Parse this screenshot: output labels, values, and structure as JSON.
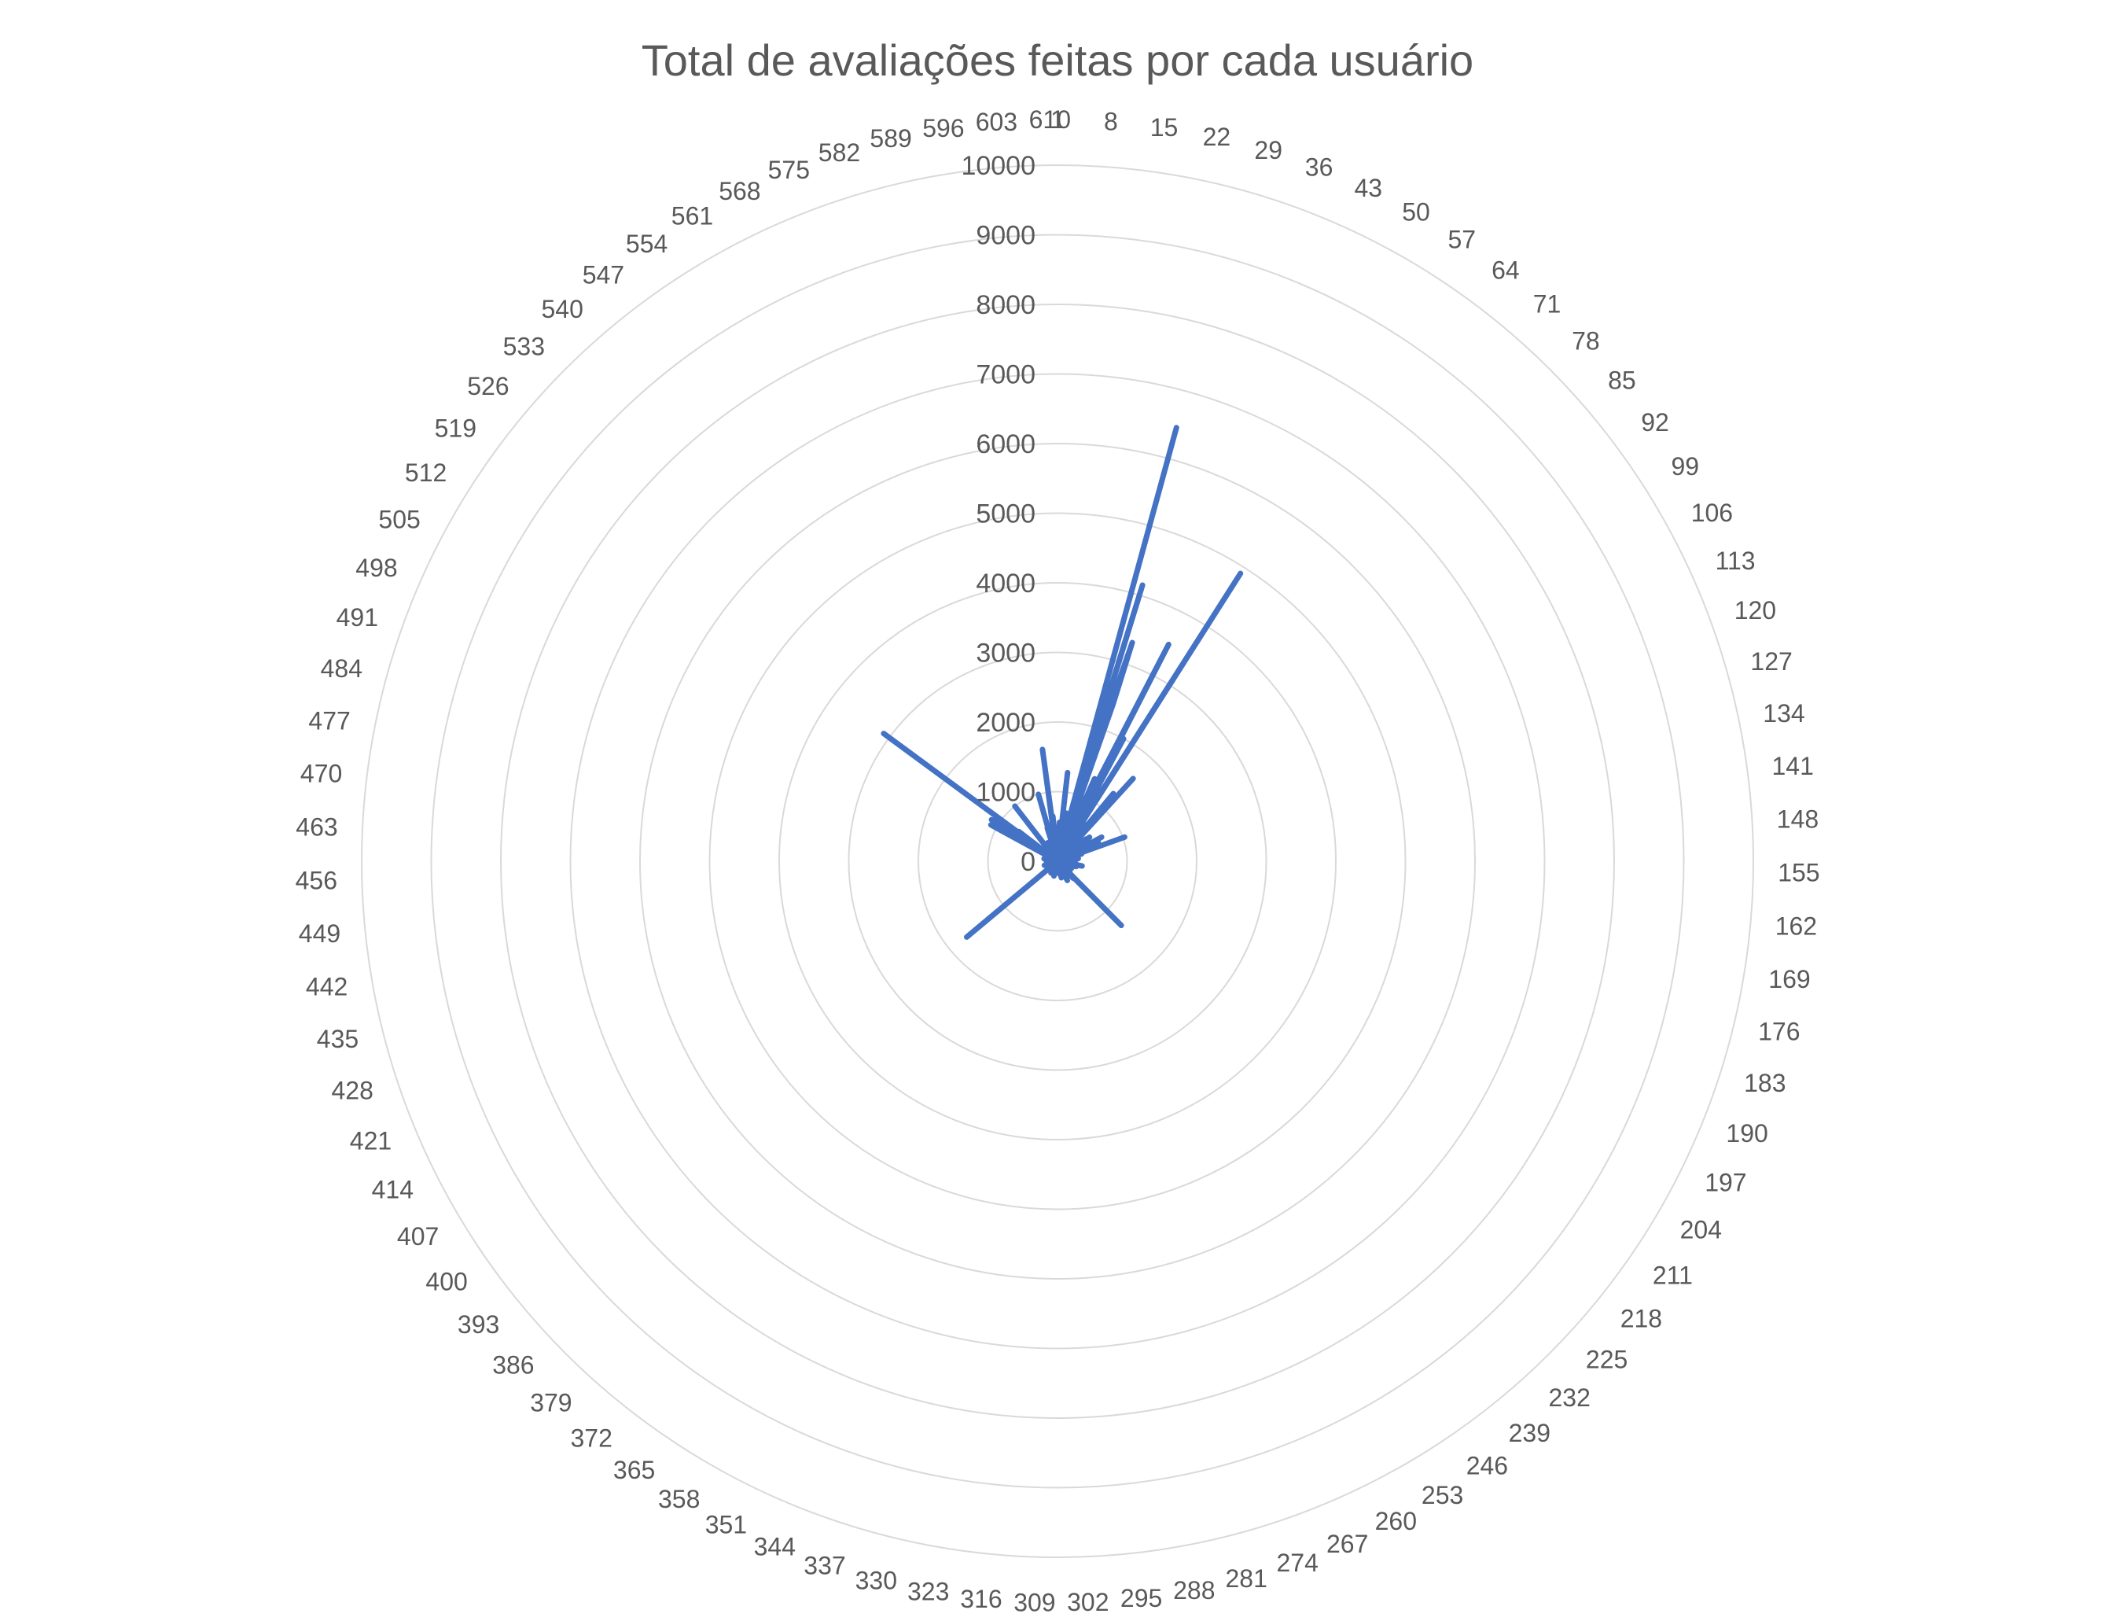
{
  "chart_data": {
    "type": "radar",
    "title": "Total de avaliações feitas por cada usuário",
    "categories_start": 1,
    "categories_end": 610,
    "category_label_step": 7,
    "radial_ticks": [
      0,
      1000,
      2000,
      3000,
      4000,
      5000,
      6000,
      7000,
      8000,
      9000,
      10000
    ],
    "rmax": 10000,
    "series": [
      {
        "color": "#4472c4",
        "values": [
          232,
          29,
          39,
          216,
          44,
          314,
          152,
          47,
          46,
          140,
          64,
          32,
          31,
          48,
          135,
          98,
          105,
          502,
          703,
          238,
          443,
          130,
          121,
          140,
          26,
          34,
          135,
          570,
          84,
          34,
          50,
          110,
          156,
          86,
          24,
          68,
          29,
          21,
          98,
          223,
          217,
          87,
          114,
          48,
          399,
          44,
          140,
          36,
          21,
          310,
          359,
          130,
          20,
          42,
          25,
          168,
          476,
          167,
          28,
          28,
          81,
          366,
          271,
          517,
          34,
          345,
          22,
          1260,
          20,
          39,
          64,
          40,
          1610,
          160,
          80,
          84,
          39,
          89,
          48,
          180,
          22,
          147,
          109,
          442,
          58,
          121,
          63,
          43,
          518,
          58,
          575,
          22,
          74,
          68,
          171,
          78,
          36,
          57,
          136,
          148,
          250,
          101,
          377,
          284,
          722,
          70,
          35,
          76,
          44,
          114,
          646,
          102,
          125,
          40,
          54,
          103,
          118,
          74,
          65,
          1026,
          27,
          310,
          118,
          250,
          360,
          29,
          85,
          40,
          48,
          39,
          52,
          211,
          48,
          20,
          182,
          94,
          143,
          86,
          190,
          81,
          301,
          134,
          32,
          145,
          111,
          60,
          35,
          38,
          34,
          24,
          36,
          34,
          95,
          49,
          192,
          69,
          93,
          35,
          48,
          63,
          133,
          52,
          70,
          95,
          47,
          43,
          270,
          114,
          143,
          149,
          78,
          360,
          59,
          148,
          91,
          197,
          34,
          161,
          23,
          280,
          79,
          123,
          31,
          24,
          38,
          23,
          139,
          37,
          53,
          95,
          140,
          131,
          200,
          48,
          76,
          58,
          215,
          86,
          225,
          170,
          48,
          34,
          46,
          160,
          130,
          65,
          86,
          38,
          53,
          56,
          60,
          72,
          94,
          74,
          189,
          210,
          32,
          66,
          75,
          50,
          46,
          60,
          235,
          50,
          60,
          240,
          59,
          189,
          188,
          1300,
          160,
          85,
          189,
          330,
          48,
          89,
          40,
          20,
          39,
          86,
          153,
          47,
          50,
          183,
          107,
          62,
          71,
          108,
          57,
          93,
          106,
          57,
          130,
          73,
          109,
          35,
          139,
          90,
          50,
          310,
          104,
          102,
          66,
          80,
          53,
          114,
          47,
          138,
          33,
          79,
          121,
          52,
          115,
          50,
          34,
          39,
          96,
          31,
          29,
          70,
          42,
          38,
          102,
          244,
          101,
          199,
          47,
          44,
          36,
          110,
          63,
          51,
          94,
          113,
          90,
          76,
          31,
          62,
          69,
          120,
          98,
          160,
          62,
          170,
          20,
          56,
          145,
          51,
          38,
          129,
          34,
          86,
          36,
          50,
          89,
          59,
          93,
          84,
          63,
          32,
          137,
          109,
          176,
          25,
          33,
          38,
          72,
          62,
          219,
          26,
          85,
          141,
          38,
          75,
          103,
          197,
          68,
          21,
          33,
          78,
          113,
          99,
          31,
          40,
          44,
          51,
          100,
          73,
          76,
          95,
          175,
          104,
          48,
          32,
          193,
          160,
          57,
          48,
          28,
          56,
          85,
          22,
          114,
          45,
          59,
          101,
          68,
          120,
          33,
          59,
          136,
          45,
          64,
          58,
          102,
          36,
          123,
          92,
          65,
          88,
          81,
          99,
          99,
          73,
          131,
          132,
          185,
          51,
          25,
          98,
          1700,
          40,
          20,
          36,
          150,
          52,
          53,
          43,
          56,
          21,
          54,
          100,
          24,
          36,
          26,
          86,
          48,
          75,
          70,
          85,
          41,
          66,
          46,
          27,
          48,
          35,
          88,
          64,
          22,
          39,
          87,
          80,
          31,
          40,
          164,
          155,
          29,
          26,
          196,
          60,
          90,
          86,
          21,
          54,
          31,
          26,
          35,
          24,
          70,
          140,
          37,
          49,
          43,
          89,
          40,
          30,
          97,
          53,
          29,
          29,
          41,
          33,
          48,
          78,
          23,
          53,
          137,
          35,
          76,
          104,
          144,
          53,
          164,
          66,
          31,
          54,
          42,
          95,
          62,
          71,
          50,
          73,
          102,
          65,
          47,
          137,
          197,
          100,
          45,
          120,
          20,
          41,
          54,
          25,
          61,
          94,
          52,
          37,
          22,
          110,
          52,
          130,
          41,
          89,
          96,
          102,
          68,
          190,
          111,
          114,
          26,
          78,
          25,
          60,
          25,
          60,
          1090,
          47,
          92,
          80,
          71,
          60,
          1120,
          94,
          69,
          130,
          64,
          55,
          37,
          3100,
          49,
          700,
          118,
          60,
          280,
          82,
          21,
          125,
          42,
          53,
          104,
          29,
          37,
          65,
          64,
          67,
          78,
          34,
          190,
          178,
          56,
          31,
          58,
          50,
          132,
          60,
          1000,
          46,
          80,
          88,
          118,
          103,
          56,
          66,
          67,
          99,
          42,
          54,
          79,
          23,
          25,
          55,
          80,
          300,
          89,
          106,
          66,
          160,
          44,
          68,
          82,
          40,
          49,
          74,
          50,
          68,
          130,
          57,
          220,
          88,
          42,
          500,
          24,
          1000,
          40,
          105,
          33,
          63,
          230,
          155,
          71,
          144,
          101,
          104,
          119,
          33,
          93,
          1620,
          250,
          109,
          650,
          170,
          79,
          136,
          83,
          58,
          36,
          88,
          75,
          79,
          44,
          160,
          48,
          22,
          62,
          560,
          52,
          86,
          38,
          66,
          25,
          1280,
          46,
          22,
          76,
          65,
          62,
          81,
          33,
          25,
          28,
          115,
          62,
          164,
          56,
          49,
          6460,
          134,
          600,
          4150,
          280,
          1500,
          3320,
          2400,
          300,
          390,
          140,
          170,
          480,
          160,
          180,
          1300,
          300,
          470,
          80,
          1200,
          3500,
          100,
          2000,
          720,
          400,
          560,
          100,
          1200,
          500,
          4900,
          100,
          200,
          300,
          660
        ]
      }
    ]
  }
}
